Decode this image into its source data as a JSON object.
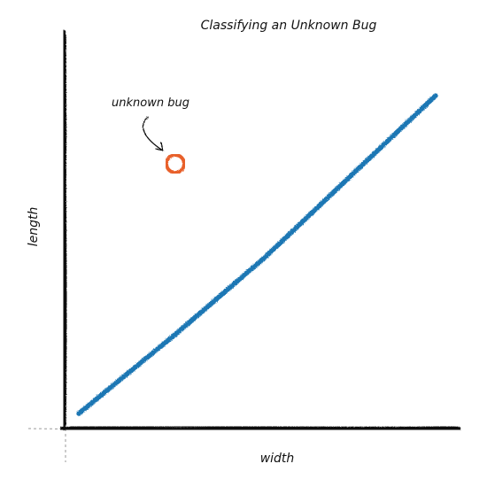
{
  "diagram": {
    "title": "Classifying an Unknown Bug",
    "xlabel": "width",
    "ylabel": "length",
    "point_label": "unknown bug"
  },
  "colors": {
    "axis": "#111111",
    "line": "#1f77b4",
    "point": "#e8612c"
  },
  "icons": {
    "pointer": "curved-arrow-icon",
    "marker": "hollow-circle-marker"
  }
}
